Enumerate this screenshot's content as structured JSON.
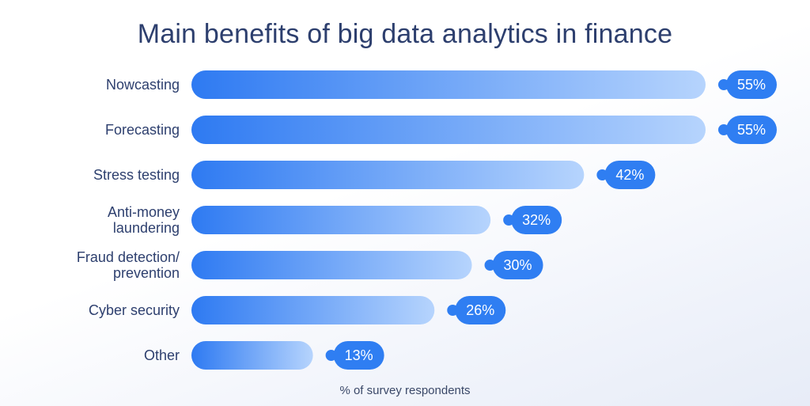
{
  "chart_data": {
    "type": "bar",
    "orientation": "horizontal",
    "title": "Main benefits of big data analytics in finance",
    "xlabel": "% of survey respondents",
    "ylabel": "",
    "categories": [
      [
        "Nowcasting"
      ],
      [
        "Forecasting"
      ],
      [
        "Stress testing"
      ],
      [
        "Anti-money",
        "laundering"
      ],
      [
        "Fraud detection/",
        "prevention"
      ],
      [
        "Cyber security"
      ],
      [
        "Other"
      ]
    ],
    "values": [
      55,
      55,
      42,
      32,
      30,
      26,
      13
    ],
    "value_labels": [
      "55%",
      "55%",
      "42%",
      "32%",
      "30%",
      "26%",
      "13%"
    ],
    "xlim": [
      0,
      55
    ],
    "grid": false,
    "legend": "none"
  },
  "colors": {
    "bar_start": "#2e7af2",
    "bar_end": "#b6d4fd",
    "badge": "#2f7ef2",
    "text": "#2d3f6e"
  }
}
